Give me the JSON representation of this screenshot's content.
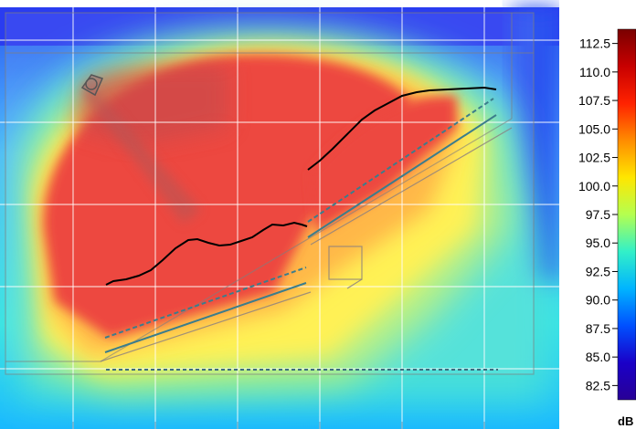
{
  "chart_data": {
    "type": "heatmap",
    "title": "",
    "xlabel": "",
    "ylabel": "",
    "colorbar": {
      "unit": "dB",
      "ticks": [
        "112.5",
        "110.0",
        "107.5",
        "105.0",
        "102.5",
        "100.0",
        "97.5",
        "95.0",
        "92.5",
        "90.0",
        "87.5",
        "85.0",
        "82.5"
      ],
      "range": [
        81.25,
        113.75
      ],
      "colors": [
        "#7a0000",
        "#c80000",
        "#ff2200",
        "#ff8c00",
        "#ffe600",
        "#b4ff50",
        "#32f0c8",
        "#00b4ff",
        "#0050ff",
        "#1a00c8",
        "#280096"
      ]
    },
    "colormap_order": "high-to-low",
    "grid": true
  }
}
